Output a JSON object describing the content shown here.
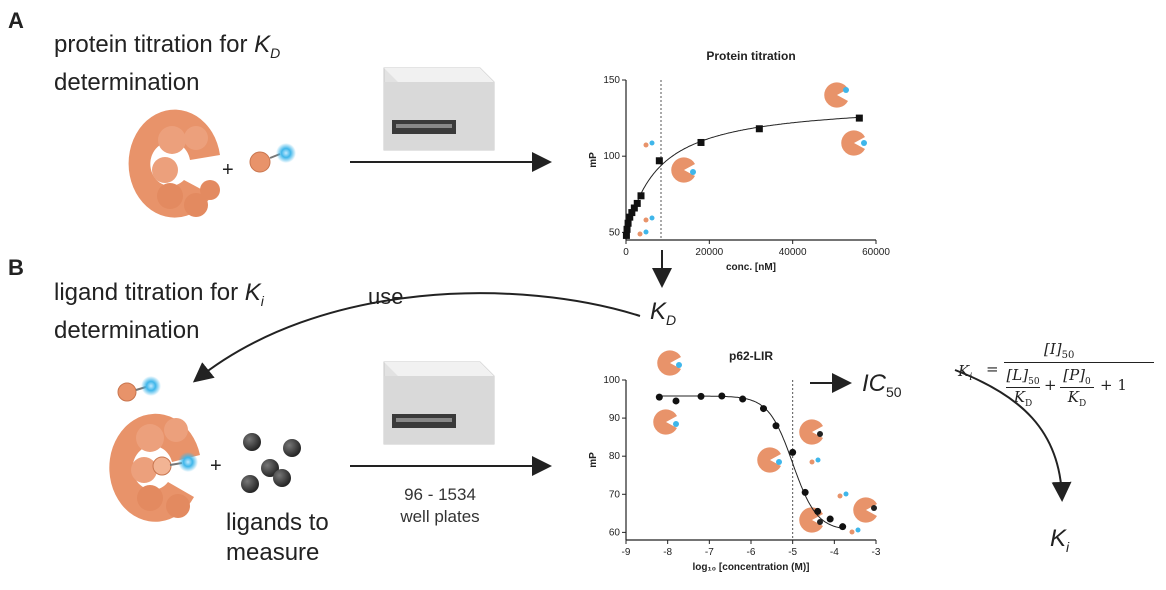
{
  "panel_a": {
    "letter": "A",
    "heading_line1": "protein titration for",
    "heading_k": "K",
    "heading_sub": "D",
    "heading_line2": "determination",
    "plus": "+"
  },
  "panel_b": {
    "letter": "B",
    "heading_line1": "ligand titration for",
    "heading_k": "K",
    "heading_sub": "i",
    "heading_line2": "determination",
    "plus": "+",
    "use_label": "use",
    "plates_line1": "96 - 1534",
    "plates_line2": "well plates",
    "ligands_line1": "ligands to",
    "ligands_line2": "measure"
  },
  "labels": {
    "kd_k": "K",
    "kd_sub": "D",
    "ic_main": "IC",
    "ic_sub": "50",
    "ki_k": "K",
    "ki_sub": "i",
    "arrow_symbol": "⟶"
  },
  "formula": {
    "lhs": "K",
    "lhs_sub": "i",
    "equals": "=",
    "numerator": "[I]",
    "numerator_sub": "50",
    "denom_t1": "[L]",
    "denom_t1_sub": "50",
    "denom_t1_den": "K",
    "denom_t1_den_sub": "D",
    "plus": "+",
    "denom_t2": "[P]",
    "denom_t2_sub": "0",
    "denom_t2_den": "K",
    "denom_t2_den_sub": "D",
    "plus_one": "+ 1"
  },
  "colors": {
    "protein": "#e8936a",
    "protein_dark": "#d97c52",
    "fluor": "#3fb6ea",
    "ligand_ball": "#3b3b3b",
    "reader_body": "#dedede"
  },
  "chart_data": [
    {
      "type": "scatter",
      "title": "Protein titration",
      "xlabel": "conc. [nM]",
      "ylabel": "mP",
      "xlim": [
        0,
        60000
      ],
      "ylim": [
        45,
        150
      ],
      "xticks": [
        0,
        20000,
        40000,
        60000
      ],
      "xtick_labels": [
        "0",
        "20000",
        "40000",
        "60000"
      ],
      "yticks": [
        50,
        100,
        150
      ],
      "ytick_labels": [
        "50",
        "100",
        "150"
      ],
      "x": [
        100,
        250,
        500,
        900,
        1400,
        2000,
        2700,
        3600,
        8000,
        18000,
        32000,
        56000
      ],
      "y": [
        48,
        52,
        56,
        60,
        63,
        66,
        69,
        74,
        97,
        109,
        118,
        125
      ],
      "fit": "one-site binding",
      "kd_line_x": 8400,
      "grid": false
    },
    {
      "type": "scatter",
      "title": "p62-LIR",
      "xlabel": "log₁₀ [concentration (M)]",
      "ylabel": "mP",
      "xlim": [
        -9,
        -3
      ],
      "ylim": [
        58,
        100
      ],
      "xticks": [
        -9,
        -8,
        -7,
        -6,
        -5,
        -4,
        -3
      ],
      "xtick_labels": [
        "-9",
        "-8",
        "-7",
        "-6",
        "-5",
        "-4",
        "-3"
      ],
      "yticks": [
        60,
        70,
        80,
        90,
        100
      ],
      "ytick_labels": [
        "60",
        "70",
        "80",
        "90",
        "100"
      ],
      "x": [
        -8.2,
        -7.8,
        -7.2,
        -6.7,
        -6.2,
        -5.7,
        -5.4,
        -5.0,
        -4.7,
        -4.4,
        -4.1,
        -3.8
      ],
      "y": [
        95.5,
        94.5,
        95.7,
        95.8,
        95.0,
        92.5,
        88.0,
        81.0,
        70.5,
        65.5,
        63.5,
        61.5
      ],
      "fit": "sigmoidal dose-response",
      "ic50_line_x": -5.0,
      "grid": false
    }
  ]
}
